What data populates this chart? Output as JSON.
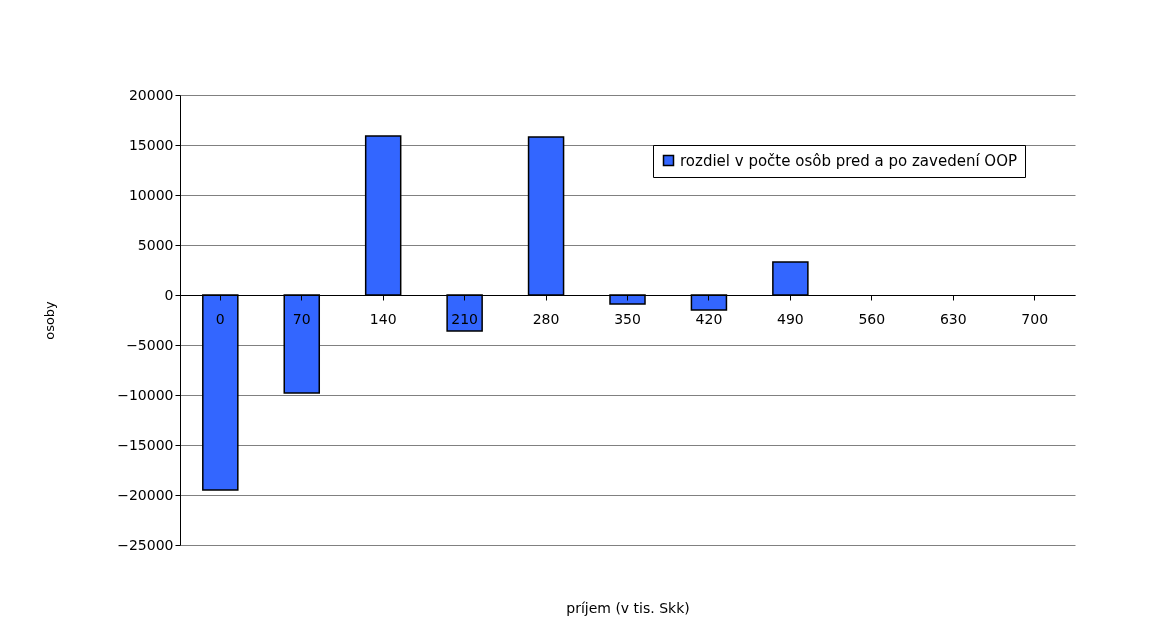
{
  "chart_data": {
    "type": "bar",
    "xlabel": "príjem (v tis. Skk)",
    "ylabel": "osoby",
    "categories": [
      "0",
      "70",
      "140",
      "210",
      "280",
      "350",
      "420",
      "490",
      "560",
      "630",
      "700"
    ],
    "series": [
      {
        "name": "rozdiel v počte osôb pred a po zavedení OOP",
        "color": "#3366ff",
        "values": [
          -19500,
          -9800,
          15900,
          -3600,
          15800,
          -900,
          -1500,
          3300,
          0,
          0,
          0
        ]
      }
    ],
    "ylim": [
      -25000,
      20000
    ],
    "yticks": [
      -25000,
      -20000,
      -15000,
      -10000,
      -5000,
      0,
      5000,
      10000,
      15000,
      20000
    ],
    "grid": "y",
    "legend": "top right"
  }
}
